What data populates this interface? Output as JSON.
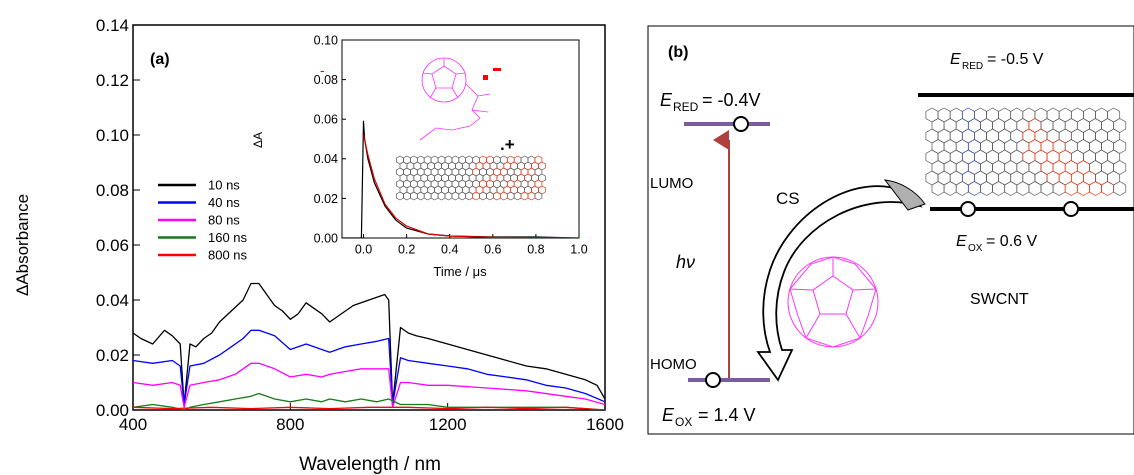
{
  "panel_a": {
    "label": "(a)",
    "chart_data": {
      "type": "line",
      "xlabel": "Wavelength / nm",
      "ylabel": "ΔAbsorbance",
      "xlim": [
        400,
        1600
      ],
      "ylim": [
        0,
        0.14
      ],
      "xticks": [
        "400",
        "800",
        "1200",
        "1600"
      ],
      "yticks": [
        "0.00",
        "0.02",
        "0.04",
        "0.06",
        "0.08",
        "0.10",
        "0.12",
        "0.14"
      ],
      "legend": "left",
      "series": [
        {
          "name": "10 ns",
          "color": "#000000",
          "x": [
            400,
            420,
            450,
            480,
            500,
            520,
            530,
            545,
            560,
            580,
            600,
            620,
            650,
            680,
            700,
            720,
            740,
            760,
            780,
            800,
            820,
            840,
            860,
            880,
            900,
            920,
            940,
            960,
            980,
            1000,
            1020,
            1040,
            1050,
            1060,
            1080,
            1100,
            1120,
            1150,
            1200,
            1250,
            1300,
            1350,
            1400,
            1450,
            1500,
            1550,
            1580,
            1600
          ],
          "y": [
            0.028,
            0.026,
            0.024,
            0.029,
            0.027,
            0.024,
            0.002,
            0.024,
            0.023,
            0.026,
            0.028,
            0.032,
            0.036,
            0.04,
            0.046,
            0.046,
            0.042,
            0.038,
            0.036,
            0.033,
            0.035,
            0.039,
            0.037,
            0.035,
            0.032,
            0.034,
            0.036,
            0.038,
            0.039,
            0.04,
            0.041,
            0.042,
            0.04,
            0.002,
            0.03,
            0.028,
            0.027,
            0.026,
            0.024,
            0.022,
            0.02,
            0.018,
            0.016,
            0.015,
            0.013,
            0.011,
            0.009,
            0.004
          ]
        },
        {
          "name": "40 ns",
          "color": "#0000ff",
          "x": [
            400,
            450,
            500,
            520,
            530,
            545,
            580,
            620,
            650,
            680,
            700,
            720,
            760,
            800,
            840,
            880,
            900,
            940,
            980,
            1020,
            1050,
            1060,
            1080,
            1100,
            1150,
            1200,
            1250,
            1300,
            1350,
            1400,
            1450,
            1500,
            1550,
            1600
          ],
          "y": [
            0.018,
            0.017,
            0.018,
            0.016,
            0.002,
            0.016,
            0.017,
            0.02,
            0.023,
            0.026,
            0.029,
            0.029,
            0.027,
            0.022,
            0.024,
            0.022,
            0.021,
            0.023,
            0.024,
            0.025,
            0.026,
            0.002,
            0.019,
            0.018,
            0.017,
            0.016,
            0.015,
            0.013,
            0.012,
            0.011,
            0.009,
            0.008,
            0.006,
            0.003
          ]
        },
        {
          "name": "80 ns",
          "color": "#ff00ff",
          "x": [
            400,
            450,
            500,
            520,
            530,
            545,
            580,
            620,
            660,
            700,
            720,
            760,
            800,
            840,
            880,
            900,
            940,
            980,
            1020,
            1050,
            1060,
            1080,
            1100,
            1150,
            1200,
            1300,
            1400,
            1500,
            1550,
            1600
          ],
          "y": [
            0.01,
            0.009,
            0.01,
            0.009,
            0.001,
            0.009,
            0.01,
            0.011,
            0.013,
            0.017,
            0.017,
            0.015,
            0.012,
            0.013,
            0.012,
            0.013,
            0.014,
            0.015,
            0.015,
            0.015,
            0.001,
            0.01,
            0.01,
            0.009,
            0.009,
            0.008,
            0.007,
            0.005,
            0.004,
            0.002
          ]
        },
        {
          "name": "160 ns",
          "color": "#1a7a1a",
          "x": [
            400,
            450,
            500,
            530,
            545,
            580,
            620,
            660,
            700,
            720,
            760,
            800,
            840,
            880,
            900,
            940,
            980,
            1020,
            1050,
            1080,
            1150,
            1200,
            1300,
            1400,
            1500,
            1600
          ],
          "y": [
            0.001,
            0.002,
            0.001,
            0,
            0.001,
            0.002,
            0.003,
            0.004,
            0.005,
            0.006,
            0.004,
            0.003,
            0.004,
            0.003,
            0.004,
            0.003,
            0.004,
            0.003,
            0.004,
            0.002,
            0.002,
            0.001,
            0.001,
            0.001,
            0.001,
            0
          ]
        },
        {
          "name": "800 ns",
          "color": "#ff0000",
          "x": [
            400,
            500,
            600,
            700,
            800,
            900,
            1000,
            1100,
            1200,
            1300,
            1400,
            1500,
            1600
          ],
          "y": [
            0.001,
            0.0005,
            0.001,
            0.0005,
            0.001,
            0.0005,
            0.001,
            0.001,
            0.0005,
            0.001,
            0.0005,
            0.001,
            0
          ]
        }
      ]
    },
    "inset": {
      "chart_data": {
        "type": "line",
        "xlabel": "Time / μs",
        "ylabel": "ΔA",
        "xlim": [
          -0.1,
          1.0
        ],
        "ylim": [
          0,
          0.1
        ],
        "xticks": [
          "0.0",
          "0.2",
          "0.4",
          "0.6",
          "0.8",
          "1.0"
        ],
        "yticks": [
          "0.00",
          "0.02",
          "0.04",
          "0.06",
          "0.08",
          "0.10"
        ],
        "series": [
          {
            "name": "",
            "color": "#000000",
            "x": [
              -0.1,
              -0.02,
              -0.01,
              0.0,
              0.005,
              0.02,
              0.05,
              0.1,
              0.15,
              0.2,
              0.3,
              0.4,
              0.6,
              0.8,
              1.0
            ],
            "y": [
              0,
              0,
              0,
              0.059,
              0.05,
              0.04,
              0.028,
              0.016,
              0.009,
              0.005,
              0.002,
              0.001,
              0.0005,
              0.0005,
              0
            ]
          },
          {
            "name": "",
            "color": "#dd0000",
            "x": [
              0.0,
              0.02,
              0.05,
              0.1,
              0.15,
              0.2,
              0.3,
              0.4,
              0.6,
              0.8,
              1.0
            ],
            "y": [
              0.052,
              0.042,
              0.03,
              0.017,
              0.01,
              0.006,
              0.002,
              0.001,
              0.0003,
              0.0001,
              0
            ]
          }
        ]
      },
      "superscript_dash": "-",
      "superscript_plus": ".+"
    }
  },
  "panel_b": {
    "label": "(b)",
    "e_red_left": "E",
    "e_red_left_sub": "RED",
    "e_red_left_val": "= -0.4V",
    "lumo": "LUMO",
    "homo": "HOMO",
    "hv": "hν",
    "cs": "CS",
    "e_ox_left": "E",
    "e_ox_left_sub": "OX",
    "e_ox_left_val": "= 1.4 V",
    "e_red_right": "E",
    "e_red_right_sub": "RED",
    "e_red_right_val": "= -0.5 V",
    "e_ox_right": "E",
    "e_ox_right_sub": "OX",
    "e_ox_right_val": "= 0.6 V",
    "swcnt": "SWCNT",
    "colors": {
      "level_purple": "#7a5ca0",
      "arrow_red": "#b04040",
      "fullerene": "#ff33ff",
      "nanotube_red": "#e03010",
      "nanotube_blue": "#3040c0"
    }
  }
}
